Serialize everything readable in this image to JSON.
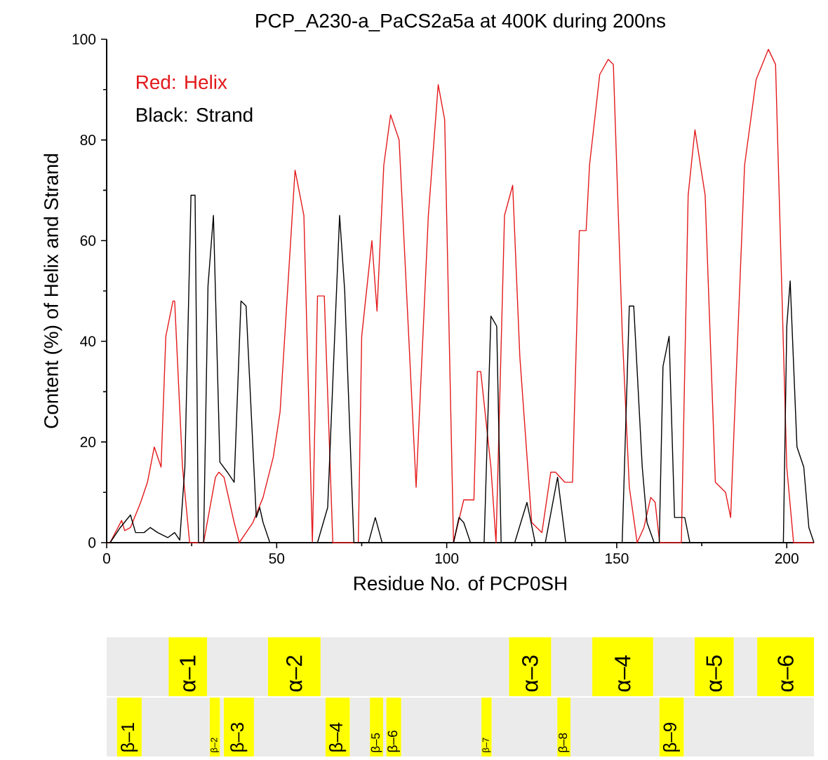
{
  "chart_data": [
    {
      "type": "line",
      "title": "PCP_A230-a_PaCS2a5a at 400K during 200ns",
      "xlabel": "Residue No. of PCP0SH",
      "ylabel": "Content (%) of Helix and Strand",
      "xlim": [
        0,
        208
      ],
      "ylim": [
        0,
        100
      ],
      "xticks": [
        0,
        50,
        100,
        150,
        200
      ],
      "yticks": [
        0,
        20,
        40,
        60,
        80,
        100
      ],
      "annotations": [
        "Red: Helix",
        "Black: Strand"
      ],
      "series": [
        {
          "color": "#e31a1c",
          "x": [
            0,
            1,
            4.4,
            5.3,
            7,
            10,
            12,
            14,
            16,
            17.4,
            19.5,
            20,
            22.3,
            24.4,
            28.5,
            32,
            33,
            34.5,
            37.5,
            39,
            43,
            46,
            49,
            51,
            55.4,
            58,
            60.5,
            62,
            64,
            66.5,
            74,
            75,
            78,
            79.5,
            81.5,
            83.5,
            86,
            91,
            94.6,
            97.5,
            99.4,
            102,
            105,
            108,
            109,
            110,
            113,
            114.5,
            117,
            119.4,
            121.5,
            125,
            128,
            130.6,
            132,
            134.7,
            137,
            139,
            141,
            142,
            145,
            147.5,
            149,
            151.6,
            153.7,
            156,
            158,
            160,
            161.3,
            162.6,
            169,
            171,
            173,
            176,
            179,
            182,
            183.5,
            184,
            187.6,
            191,
            194.6,
            196.7,
            200,
            202,
            208
          ],
          "values": [
            0,
            0,
            4.4,
            2.4,
            3,
            8,
            12,
            19,
            15,
            41,
            48,
            48,
            15,
            0,
            0,
            13,
            14,
            13,
            4,
            0,
            4,
            9,
            17,
            26,
            74,
            65,
            0,
            49,
            49,
            0,
            0,
            41,
            60,
            46,
            75,
            85,
            80,
            11,
            65,
            91,
            84,
            0,
            8.5,
            8.5,
            34,
            34,
            15,
            0,
            65,
            71,
            37,
            4,
            2,
            14,
            14,
            12,
            12,
            62,
            62,
            75,
            93,
            96,
            95,
            42,
            11,
            0,
            3,
            9,
            8,
            0,
            0,
            69,
            82,
            69,
            12,
            10,
            5,
            14,
            75,
            92,
            98,
            95,
            15,
            0,
            0
          ]
        },
        {
          "color": "#000000",
          "x": [
            0,
            1,
            4,
            7,
            8.5,
            11,
            12.8,
            15,
            18,
            20,
            21.5,
            23,
            24.8,
            26,
            27,
            28.5,
            29.8,
            31.4,
            33.3,
            35.5,
            37.5,
            39.5,
            41,
            44,
            45,
            46,
            48,
            62,
            65,
            68.5,
            70,
            72.7,
            77,
            79,
            81,
            102,
            103.6,
            105,
            107,
            111,
            113,
            114.7,
            116,
            120,
            123.6,
            126,
            129,
            132.6,
            135,
            151.6,
            153.7,
            155,
            157.5,
            158.9,
            161,
            162.5,
            163.6,
            165.4,
            167,
            170,
            171.5,
            199,
            200,
            201,
            203,
            205,
            206.5,
            208
          ],
          "values": [
            0,
            0,
            3,
            5.5,
            2,
            2,
            3,
            2,
            1,
            2,
            0.5,
            15,
            69,
            69,
            0,
            0,
            51,
            65,
            16,
            14,
            12,
            48,
            47,
            5,
            7,
            4,
            0,
            0,
            7,
            65,
            50,
            0,
            0,
            5,
            0,
            0,
            5,
            4,
            0,
            0,
            45,
            43,
            0,
            0,
            8,
            0,
            0,
            13,
            0,
            0,
            47,
            47,
            15,
            4,
            0,
            0,
            35,
            41,
            5,
            5,
            0,
            0,
            43,
            52,
            19,
            15,
            3,
            0
          ]
        }
      ]
    },
    {
      "type": "bar",
      "orientation": "horizontal",
      "stacked": true,
      "categories": [
        null,
        null
      ],
      "xlim": [
        0,
        208
      ],
      "series": [
        {
          "color": "#ebebeb",
          "values": [
            18.2,
            3
          ]
        },
        {
          "color": "#ffff00",
          "values": [
            11.3,
            7.3
          ],
          "value_labels": [
            "α–1",
            "β–1"
          ]
        },
        {
          "color": "#ebebeb",
          "values": [
            17.9,
            20
          ]
        },
        {
          "color": "#ffff00",
          "values": [
            15.5,
            3
          ],
          "value_labels": [
            "α–2",
            "β–2"
          ]
        },
        {
          "color": "#ebebeb",
          "values": [
            55.4,
            1.1
          ]
        },
        {
          "color": "#ffff00",
          "values": [
            12.4,
            8.9
          ],
          "value_labels": [
            "α–3",
            "β–3"
          ]
        },
        {
          "color": "#ebebeb",
          "values": [
            12.1,
            21
          ]
        },
        {
          "color": "#ffff00",
          "values": [
            17.9,
            7.2
          ],
          "value_labels": [
            "α–4",
            "β–4"
          ]
        },
        {
          "color": "#ebebeb",
          "values": [
            12.2,
            5.9
          ]
        },
        {
          "color": "#ffff00",
          "values": [
            11.5,
            3.9
          ],
          "value_labels": [
            "α–5",
            "β–5"
          ]
        },
        {
          "color": "#ebebeb",
          "values": [
            6.9,
            0.9
          ]
        },
        {
          "color": "#ffff00",
          "values": [
            16.7,
            4.4
          ],
          "value_labels": [
            "α–6",
            "β–6"
          ]
        },
        {
          "color": "#ebebeb",
          "values": [
            null,
            23.6
          ]
        },
        {
          "color": "#ffff00",
          "values": [
            null,
            3
          ],
          "value_labels": [
            null,
            "β–7"
          ]
        },
        {
          "color": "#ebebeb",
          "values": [
            null,
            19.3
          ]
        },
        {
          "color": "#ffff00",
          "values": [
            null,
            3.9
          ],
          "value_labels": [
            null,
            "β–8"
          ]
        },
        {
          "color": "#ebebeb",
          "values": [
            null,
            26.1
          ]
        },
        {
          "color": "#ffff00",
          "values": [
            null,
            7.2
          ],
          "value_labels": [
            null,
            "β–9"
          ]
        },
        {
          "color": "#ebebeb",
          "values": [
            null,
            38.3
          ]
        }
      ]
    }
  ]
}
